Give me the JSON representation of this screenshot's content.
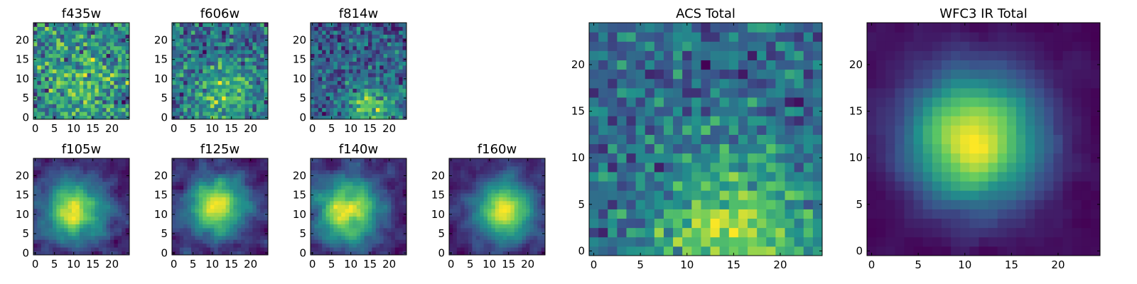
{
  "figure": {
    "description_colormap": "viridis",
    "colors": [
      "#440154",
      "#3b528b",
      "#21918c",
      "#5ec962",
      "#fde725"
    ]
  },
  "chart_data": [
    {
      "type": "heatmap",
      "title": "f435w",
      "size": 25,
      "xticks": [
        0,
        5,
        10,
        15,
        20
      ],
      "yticks": [
        0,
        5,
        10,
        15,
        20
      ],
      "xlim": [
        -0.5,
        24.5
      ],
      "ylim": [
        -0.5,
        24.5
      ],
      "seed": 11,
      "peak": [
        12,
        8
      ],
      "peak_strength": 0.25,
      "peak_width": 5.0,
      "noise": 1.0,
      "smooth": 0
    },
    {
      "type": "heatmap",
      "title": "f606w",
      "size": 25,
      "xticks": [
        0,
        5,
        10,
        15,
        20
      ],
      "yticks": [
        0,
        5,
        10,
        15,
        20
      ],
      "xlim": [
        -0.5,
        24.5
      ],
      "ylim": [
        -0.5,
        24.5
      ],
      "seed": 23,
      "peak": [
        14,
        6
      ],
      "peak_strength": 0.35,
      "peak_width": 5.0,
      "noise": 1.0,
      "smooth": 0
    },
    {
      "type": "heatmap",
      "title": "f814w",
      "size": 25,
      "xticks": [
        0,
        5,
        10,
        15,
        20
      ],
      "yticks": [
        0,
        5,
        10,
        15,
        20
      ],
      "xlim": [
        -0.5,
        24.5
      ],
      "ylim": [
        -0.5,
        24.5
      ],
      "seed": 37,
      "peak": [
        15,
        2
      ],
      "peak_strength": 0.6,
      "peak_width": 4.0,
      "noise": 1.0,
      "smooth": 0
    },
    {
      "type": "heatmap",
      "title": "f105w",
      "size": 25,
      "xticks": [
        0,
        5,
        10,
        15,
        20
      ],
      "yticks": [
        0,
        5,
        10,
        15,
        20
      ],
      "xlim": [
        -0.5,
        24.5
      ],
      "ylim": [
        -0.5,
        24.5
      ],
      "seed": 41,
      "peak": [
        10,
        11
      ],
      "peak_strength": 0.8,
      "peak_width": 5.5,
      "noise": 0.9,
      "smooth": 1
    },
    {
      "type": "heatmap",
      "title": "f125w",
      "size": 25,
      "xticks": [
        0,
        5,
        10,
        15,
        20
      ],
      "yticks": [
        0,
        5,
        10,
        15,
        20
      ],
      "xlim": [
        -0.5,
        24.5
      ],
      "ylim": [
        -0.5,
        24.5
      ],
      "seed": 53,
      "peak": [
        11,
        12
      ],
      "peak_strength": 0.9,
      "peak_width": 5.0,
      "noise": 0.9,
      "smooth": 1
    },
    {
      "type": "heatmap",
      "title": "f140w",
      "size": 25,
      "xticks": [
        0,
        5,
        10,
        15,
        20
      ],
      "yticks": [
        0,
        5,
        10,
        15,
        20
      ],
      "xlim": [
        -0.5,
        24.5
      ],
      "ylim": [
        -0.5,
        24.5
      ],
      "seed": 67,
      "peak": [
        9,
        11
      ],
      "peak_strength": 0.8,
      "peak_width": 6.0,
      "noise": 0.9,
      "smooth": 1
    },
    {
      "type": "heatmap",
      "title": "f160w",
      "size": 25,
      "xticks": [
        0,
        5,
        10,
        15,
        20
      ],
      "yticks": [
        0,
        5,
        10,
        15,
        20
      ],
      "xlim": [
        -0.5,
        24.5
      ],
      "ylim": [
        -0.5,
        24.5
      ],
      "seed": 79,
      "peak": [
        14,
        11
      ],
      "peak_strength": 1.1,
      "peak_width": 5.0,
      "noise": 0.9,
      "smooth": 1
    },
    {
      "type": "heatmap",
      "title": "ACS Total",
      "size": 25,
      "xticks": [
        0,
        5,
        10,
        15,
        20
      ],
      "yticks": [
        0,
        5,
        10,
        15,
        20
      ],
      "xlim": [
        -0.5,
        24.5
      ],
      "ylim": [
        -0.5,
        24.5
      ],
      "seed": 97,
      "peak": [
        15,
        2
      ],
      "peak_strength": 0.5,
      "peak_width": 6.0,
      "noise": 0.75,
      "smooth": 0
    },
    {
      "type": "heatmap",
      "title": "WFC3 IR Total",
      "size": 25,
      "xticks": [
        0,
        5,
        10,
        15,
        20
      ],
      "yticks": [
        0,
        5,
        10,
        15,
        20
      ],
      "xlim": [
        -0.5,
        24.5
      ],
      "ylim": [
        -0.5,
        24.5
      ],
      "seed": 101,
      "peak": [
        11,
        12
      ],
      "peak_strength": 1.4,
      "peak_width": 5.0,
      "noise": 0.5,
      "smooth": 1
    }
  ]
}
